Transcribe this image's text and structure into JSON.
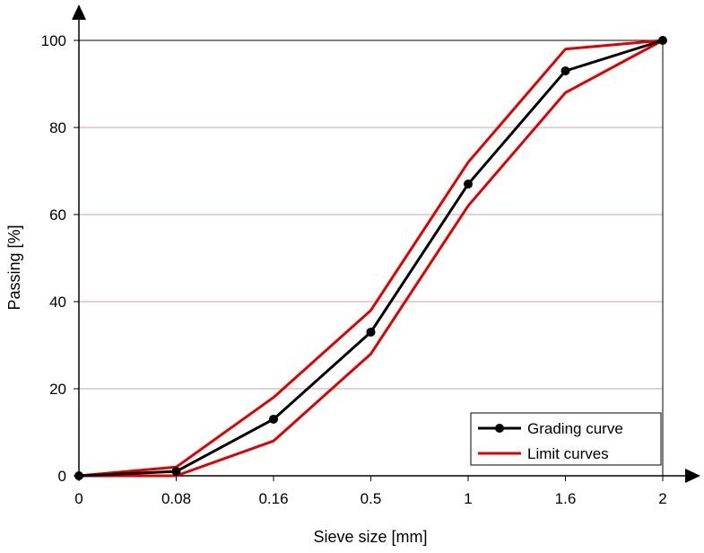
{
  "chart_data": {
    "type": "line",
    "categories": [
      "0",
      "0.08",
      "0.16",
      "0.5",
      "1",
      "1.6",
      "2"
    ],
    "xlabel": "Sieve size [mm]",
    "ylabel": "Passing [%]",
    "ylim": [
      0,
      100
    ],
    "yticks": [
      "0",
      "20",
      "40",
      "60",
      "80",
      "100"
    ],
    "grid": true,
    "legend_position": "bottom-right",
    "series": [
      {
        "name": "Grading curve",
        "values": [
          0,
          1,
          13,
          33,
          67,
          93,
          100
        ],
        "color": "#000000",
        "markers": true
      },
      {
        "name": "Limit curves",
        "values": [
          0,
          2,
          18,
          38,
          72,
          98,
          100
        ],
        "color": "#e00000",
        "markers": false
      },
      {
        "name": "",
        "values": [
          0,
          0,
          8,
          28,
          62,
          88,
          100
        ],
        "color": "#e00000",
        "markers": false
      }
    ],
    "legend": [
      "Grading curve",
      "Limit curves"
    ]
  }
}
